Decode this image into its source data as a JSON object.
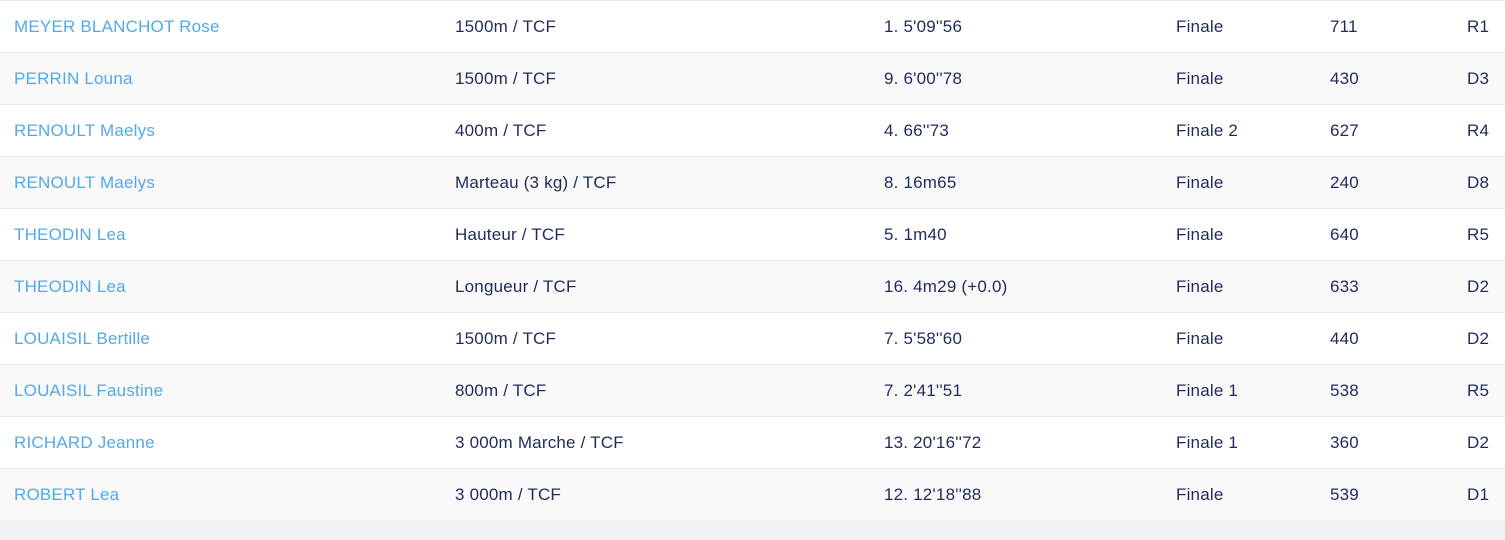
{
  "table": {
    "columns": [
      "athlete",
      "event",
      "result",
      "round",
      "points",
      "level"
    ],
    "rows": [
      {
        "athlete": "MEYER BLANCHOT Rose",
        "event": "1500m / TCF",
        "result": "1. 5'09''56",
        "round": "Finale",
        "points": "711",
        "level": "R1"
      },
      {
        "athlete": "PERRIN Louna",
        "event": "1500m / TCF",
        "result": "9. 6'00''78",
        "round": "Finale",
        "points": "430",
        "level": "D3"
      },
      {
        "athlete": "RENOULT Maelys",
        "event": "400m / TCF",
        "result": "4. 66''73",
        "round": "Finale 2",
        "points": "627",
        "level": "R4"
      },
      {
        "athlete": "RENOULT Maelys",
        "event": "Marteau (3 kg) / TCF",
        "result": "8. 16m65",
        "round": "Finale",
        "points": "240",
        "level": "D8"
      },
      {
        "athlete": "THEODIN Lea",
        "event": "Hauteur / TCF",
        "result": "5. 1m40",
        "round": "Finale",
        "points": "640",
        "level": "R5"
      },
      {
        "athlete": "THEODIN Lea",
        "event": "Longueur / TCF",
        "result": "16. 4m29 (+0.0)",
        "round": "Finale",
        "points": "633",
        "level": "D2"
      },
      {
        "athlete": "LOUAISIL Bertille",
        "event": "1500m / TCF",
        "result": "7. 5'58''60",
        "round": "Finale",
        "points": "440",
        "level": "D2"
      },
      {
        "athlete": "LOUAISIL Faustine",
        "event": "800m / TCF",
        "result": "7. 2'41''51",
        "round": "Finale 1",
        "points": "538",
        "level": "R5"
      },
      {
        "athlete": "RICHARD Jeanne",
        "event": "3 000m Marche / TCF",
        "result": "13. 20'16''72",
        "round": "Finale 1",
        "points": "360",
        "level": "D2"
      },
      {
        "athlete": "ROBERT Lea",
        "event": "3 000m / TCF",
        "result": "12. 12'18''88",
        "round": "Finale",
        "points": "539",
        "level": "D1"
      }
    ]
  },
  "colors": {
    "link_blue": "#53a9e8",
    "text_navy": "#1f2b5b",
    "row_alt": "#f9f9fa",
    "separator": "#e9e9ec",
    "footer_strip": "#f2f2f4"
  }
}
